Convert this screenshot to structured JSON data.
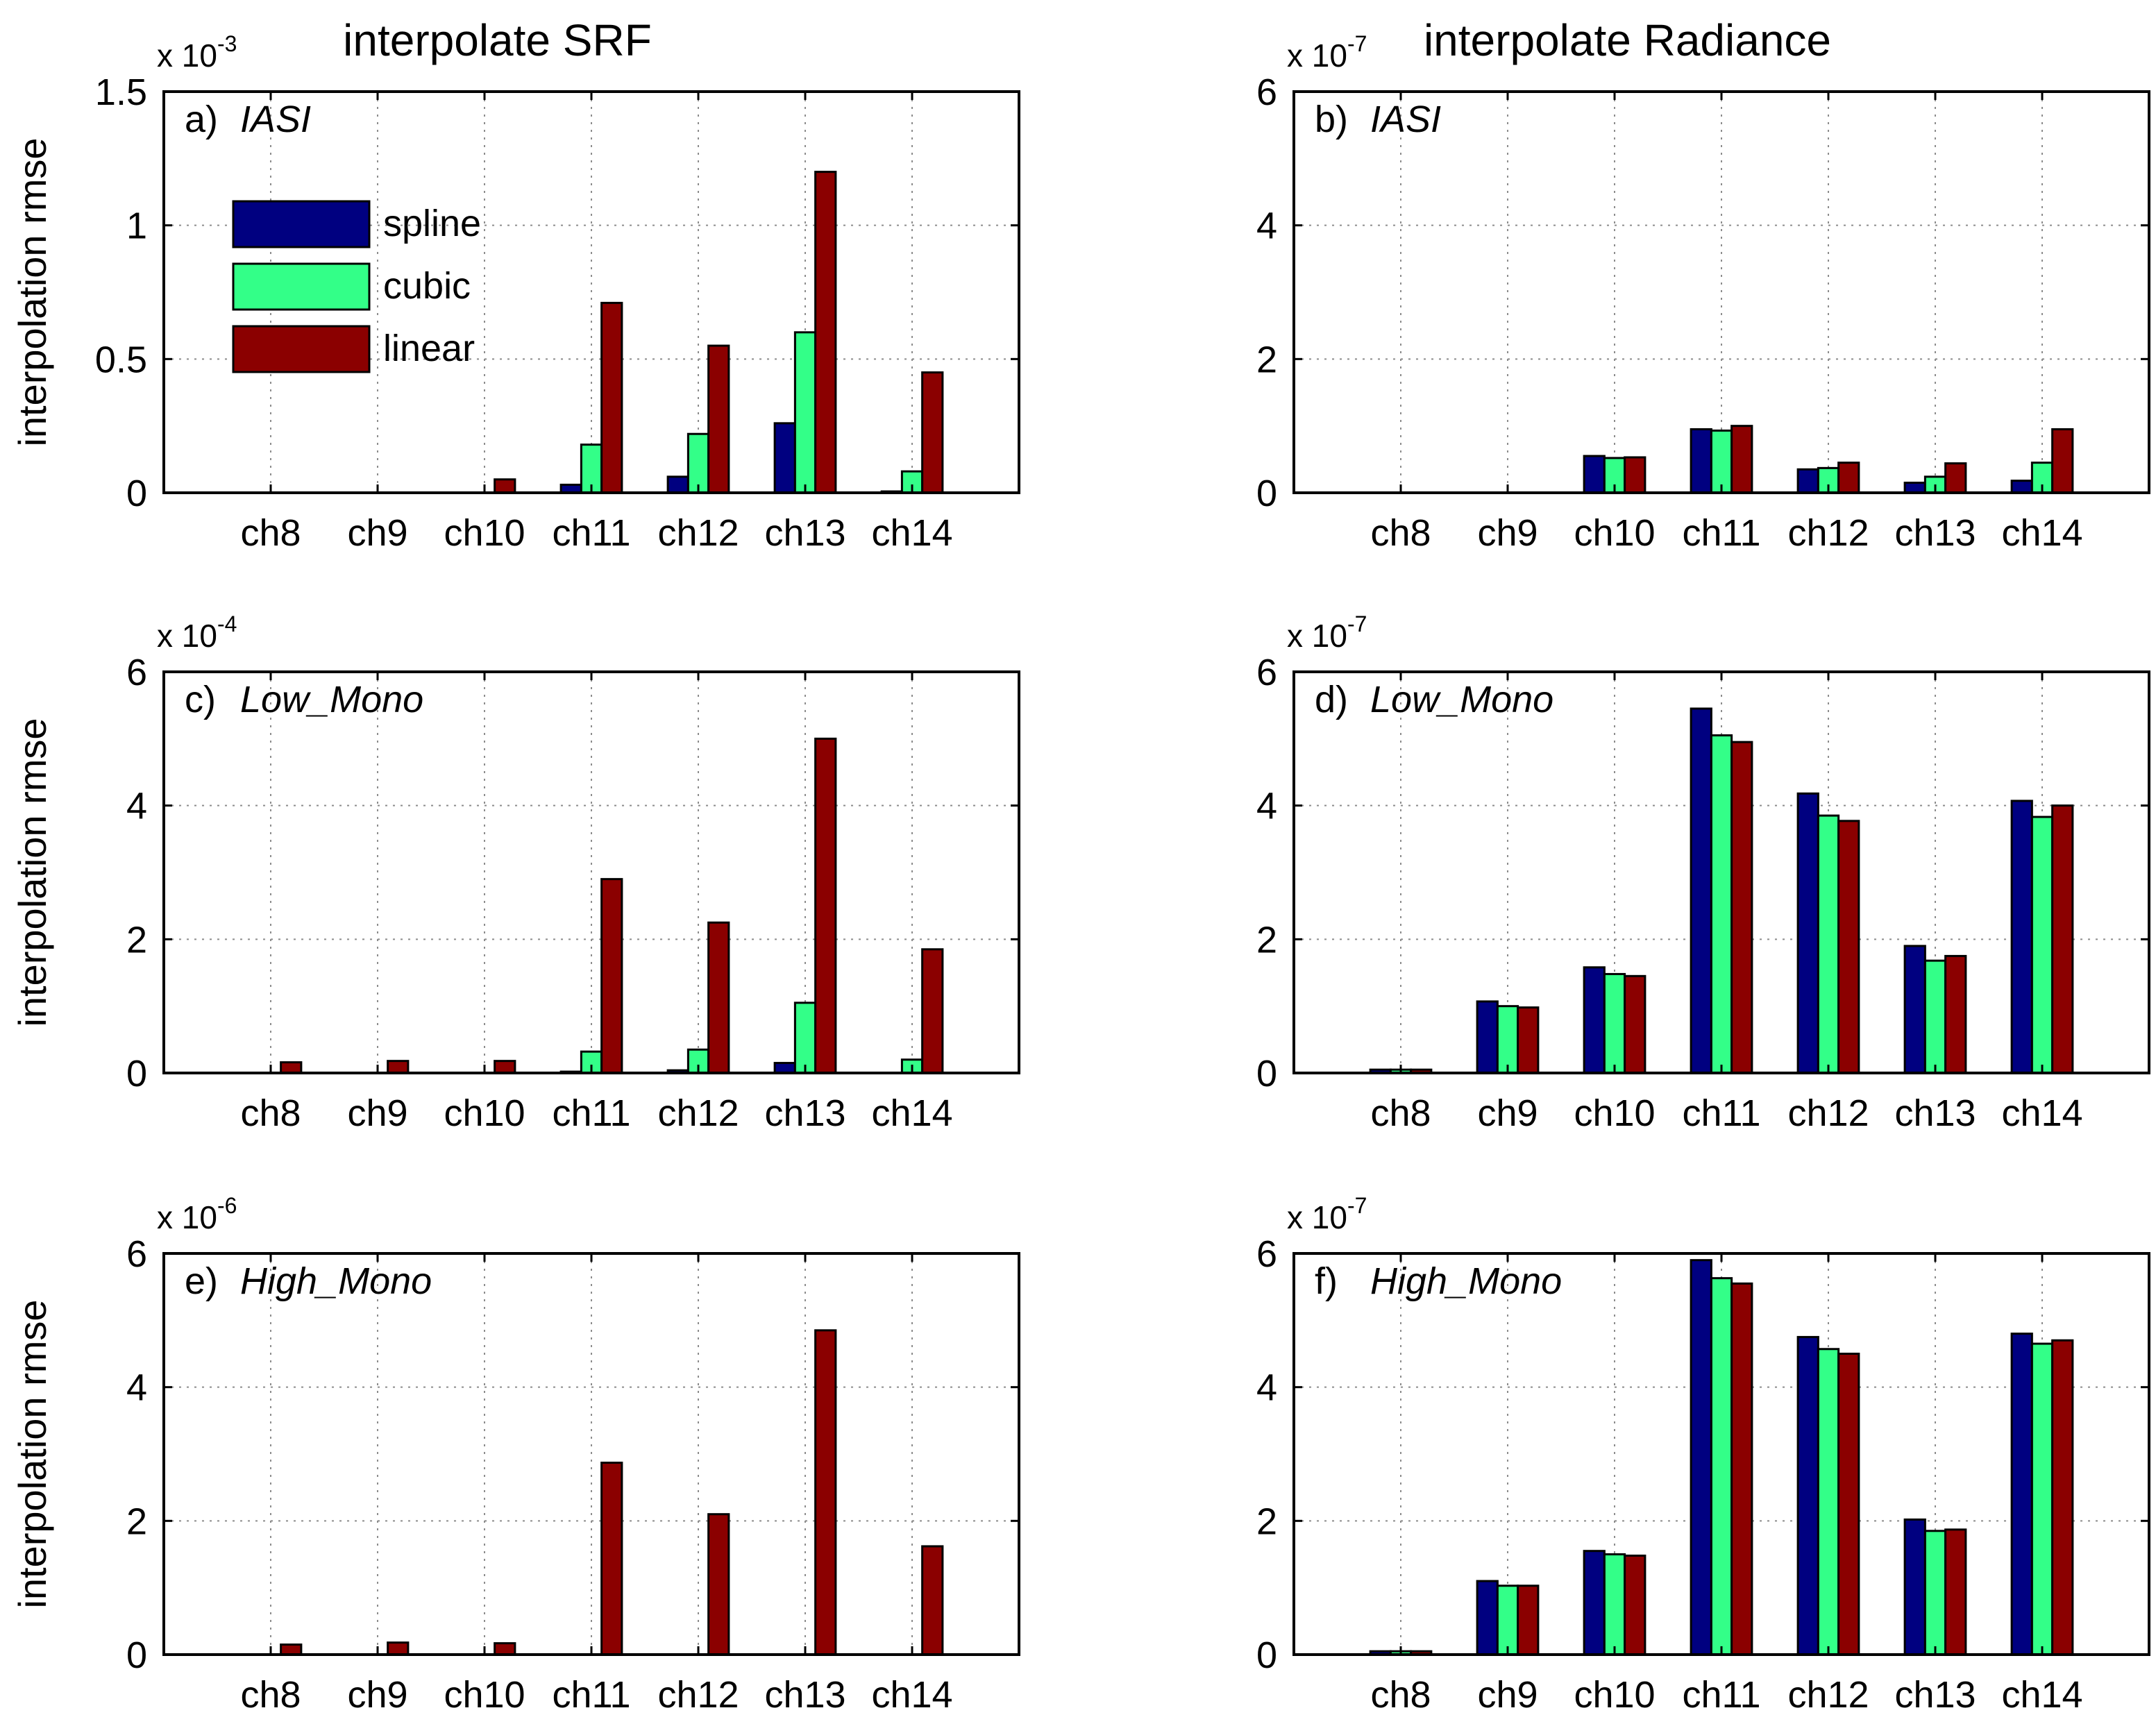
{
  "chart_data": [
    {
      "id": "a",
      "type": "bar",
      "column_title": "interpolate SRF",
      "panel_tag": "a)",
      "panel_name": "IASI",
      "ylabel": "interpolation rmse",
      "exponent_base": "x 10",
      "exponent": "-3",
      "ylim": [
        0,
        1.5
      ],
      "yticks": [
        0,
        0.5,
        1,
        1.5
      ],
      "ytick_labels": [
        "0",
        "0.5",
        "1",
        "1.5"
      ],
      "categories": [
        "ch8",
        "ch9",
        "ch10",
        "ch11",
        "ch12",
        "ch13",
        "ch14"
      ],
      "series": [
        {
          "name": "spline",
          "color": "#000080",
          "values": [
            0,
            0,
            0,
            0.03,
            0.06,
            0.26,
            0.005
          ]
        },
        {
          "name": "cubic",
          "color": "#33ff88",
          "values": [
            0,
            0,
            0,
            0.18,
            0.22,
            0.6,
            0.08
          ]
        },
        {
          "name": "linear",
          "color": "#8b0000",
          "values": [
            0,
            0,
            0.05,
            0.71,
            0.55,
            1.2,
            0.45
          ]
        }
      ],
      "legend": {
        "location": "upper-left",
        "entries": [
          "spline",
          "cubic",
          "linear"
        ]
      }
    },
    {
      "id": "b",
      "type": "bar",
      "column_title": "interpolate Radiance",
      "panel_tag": "b)",
      "panel_name": "IASI",
      "ylabel": "",
      "exponent_base": "x 10",
      "exponent": "-7",
      "ylim": [
        0,
        6
      ],
      "yticks": [
        0,
        2,
        4,
        6
      ],
      "ytick_labels": [
        "0",
        "2",
        "4",
        "6"
      ],
      "categories": [
        "ch8",
        "ch9",
        "ch10",
        "ch11",
        "ch12",
        "ch13",
        "ch14"
      ],
      "series": [
        {
          "name": "spline",
          "color": "#000080",
          "values": [
            0,
            0,
            0.55,
            0.95,
            0.35,
            0.15,
            0.18
          ]
        },
        {
          "name": "cubic",
          "color": "#33ff88",
          "values": [
            0,
            0,
            0.52,
            0.93,
            0.37,
            0.24,
            0.45
          ]
        },
        {
          "name": "linear",
          "color": "#8b0000",
          "values": [
            0,
            0,
            0.53,
            1.0,
            0.45,
            0.44,
            0.95
          ]
        }
      ]
    },
    {
      "id": "c",
      "type": "bar",
      "column_title": "",
      "panel_tag": "c)",
      "panel_name": "Low_Mono",
      "ylabel": "interpolation rmse",
      "exponent_base": "x 10",
      "exponent": "-4",
      "ylim": [
        0,
        6
      ],
      "yticks": [
        0,
        2,
        4,
        6
      ],
      "ytick_labels": [
        "0",
        "2",
        "4",
        "6"
      ],
      "categories": [
        "ch8",
        "ch9",
        "ch10",
        "ch11",
        "ch12",
        "ch13",
        "ch14"
      ],
      "series": [
        {
          "name": "spline",
          "color": "#000080",
          "values": [
            0,
            0,
            0,
            0.02,
            0.04,
            0.15,
            0
          ]
        },
        {
          "name": "cubic",
          "color": "#33ff88",
          "values": [
            0,
            0,
            0,
            0.32,
            0.35,
            1.05,
            0.2
          ]
        },
        {
          "name": "linear",
          "color": "#8b0000",
          "values": [
            0.16,
            0.18,
            0.18,
            2.9,
            2.25,
            5.0,
            1.85
          ]
        }
      ]
    },
    {
      "id": "d",
      "type": "bar",
      "column_title": "",
      "panel_tag": "d)",
      "panel_name": "Low_Mono",
      "ylabel": "",
      "exponent_base": "x 10",
      "exponent": "-7",
      "ylim": [
        0,
        6
      ],
      "yticks": [
        0,
        2,
        4,
        6
      ],
      "ytick_labels": [
        "0",
        "2",
        "4",
        "6"
      ],
      "categories": [
        "ch8",
        "ch9",
        "ch10",
        "ch11",
        "ch12",
        "ch13",
        "ch14"
      ],
      "series": [
        {
          "name": "spline",
          "color": "#000080",
          "values": [
            0.05,
            1.07,
            1.58,
            5.45,
            4.18,
            1.9,
            4.07
          ]
        },
        {
          "name": "cubic",
          "color": "#33ff88",
          "values": [
            0.05,
            1.0,
            1.48,
            5.05,
            3.85,
            1.68,
            3.83
          ]
        },
        {
          "name": "linear",
          "color": "#8b0000",
          "values": [
            0.05,
            0.98,
            1.45,
            4.95,
            3.77,
            1.75,
            4.0
          ]
        }
      ]
    },
    {
      "id": "e",
      "type": "bar",
      "column_title": "",
      "panel_tag": "e)",
      "panel_name": "High_Mono",
      "ylabel": "interpolation rmse",
      "exponent_base": "x 10",
      "exponent": "-6",
      "ylim": [
        0,
        6
      ],
      "yticks": [
        0,
        2,
        4,
        6
      ],
      "ytick_labels": [
        "0",
        "2",
        "4",
        "6"
      ],
      "categories": [
        "ch8",
        "ch9",
        "ch10",
        "ch11",
        "ch12",
        "ch13",
        "ch14"
      ],
      "series": [
        {
          "name": "spline",
          "color": "#000080",
          "values": [
            0,
            0,
            0,
            0,
            0,
            0,
            0
          ]
        },
        {
          "name": "cubic",
          "color": "#33ff88",
          "values": [
            0,
            0,
            0,
            0,
            0,
            0,
            0
          ]
        },
        {
          "name": "linear",
          "color": "#8b0000",
          "values": [
            0.15,
            0.18,
            0.17,
            2.87,
            2.1,
            4.85,
            1.62
          ]
        }
      ]
    },
    {
      "id": "f",
      "type": "bar",
      "column_title": "",
      "panel_tag": "f)",
      "panel_name": "High_Mono",
      "ylabel": "",
      "exponent_base": "x 10",
      "exponent": "-7",
      "ylim": [
        0,
        6
      ],
      "yticks": [
        0,
        2,
        4,
        6
      ],
      "ytick_labels": [
        "0",
        "2",
        "4",
        "6"
      ],
      "categories": [
        "ch8",
        "ch9",
        "ch10",
        "ch11",
        "ch12",
        "ch13",
        "ch14"
      ],
      "series": [
        {
          "name": "spline",
          "color": "#000080",
          "values": [
            0.05,
            1.1,
            1.55,
            5.9,
            4.75,
            2.02,
            4.8
          ]
        },
        {
          "name": "cubic",
          "color": "#33ff88",
          "values": [
            0.05,
            1.03,
            1.5,
            5.63,
            4.57,
            1.85,
            4.65
          ]
        },
        {
          "name": "linear",
          "color": "#8b0000",
          "values": [
            0.05,
            1.03,
            1.48,
            5.55,
            4.5,
            1.87,
            4.7
          ]
        }
      ]
    }
  ]
}
